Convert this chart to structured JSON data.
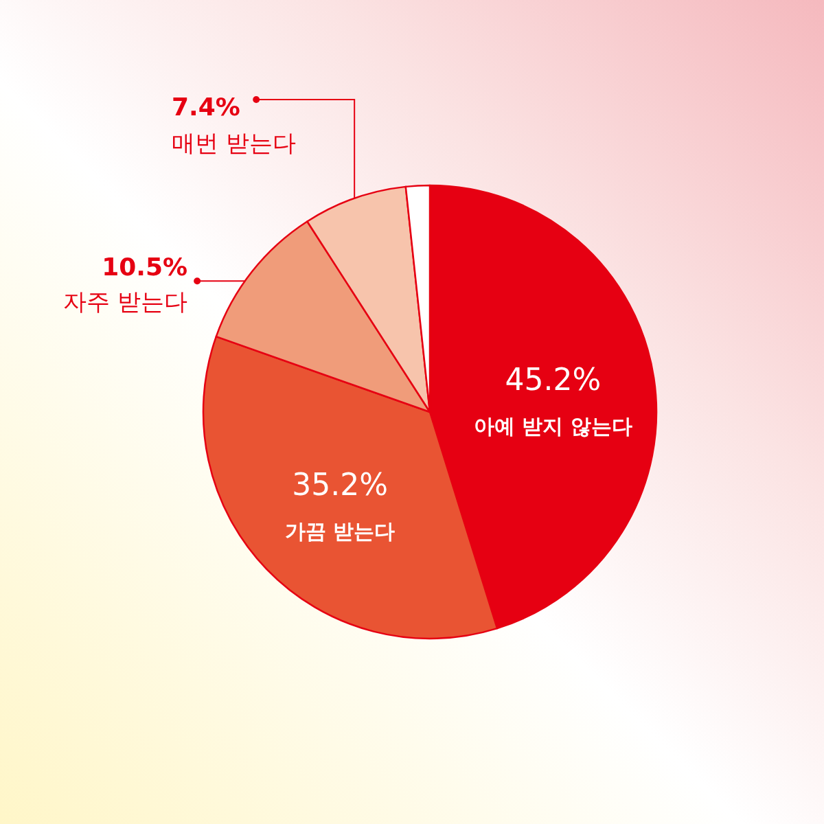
{
  "chart_data": {
    "type": "pie",
    "categories": [
      "아예 받지 않는다",
      "가끔 받는다",
      "자주 받는다",
      "매번 받는다",
      null
    ],
    "values": [
      45.2,
      35.2,
      10.5,
      7.4,
      1.7
    ],
    "colors": [
      "#e60012",
      "#e95433",
      "#f09c7a",
      "#f7c4ac",
      "#ffffff"
    ],
    "value_labels": [
      "45.2%",
      "35.2%",
      "10.5%",
      "7.4%",
      null
    ]
  }
}
